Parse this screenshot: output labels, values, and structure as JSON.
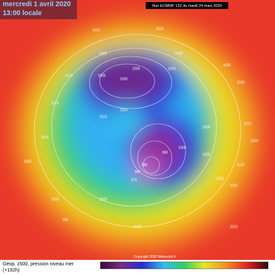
{
  "header": {
    "date": "mercredi 1 avril 2020",
    "time": "13:00 locale",
    "run": "Run ECMWF 12Z du mardi 24 mars 2020"
  },
  "footer": {
    "title": "Géop. z500, pression niveau mer",
    "lead": "(+192h)",
    "copyright": "Copyright 2020 Meteociel.fr"
  },
  "isobar_labels": [
    1010,
    1010,
    1005,
    1000,
    1005,
    1010,
    1015,
    1020,
    1025,
    1015,
    1020,
    1025,
    1015,
    1020,
    1000,
    990,
    985,
    980,
    975,
    1020,
    1015,
    1010,
    1005,
    1015,
    1020,
    1010,
    1015,
    1010,
    995,
    1030,
    1025,
    1030,
    1025
  ]
}
